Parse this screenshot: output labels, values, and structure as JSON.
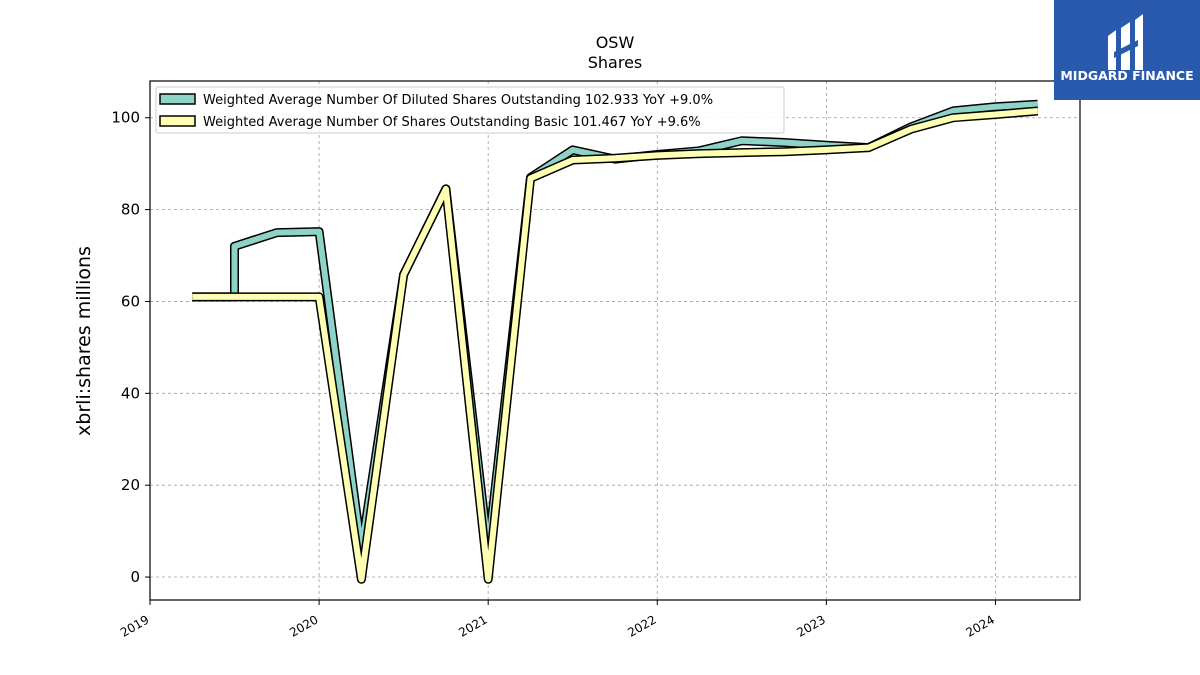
{
  "chart_data": {
    "type": "area",
    "title": "OSW",
    "subtitle": "Shares",
    "ylabel": "xbrli:shares millions",
    "xlabel": "",
    "ylim": [
      -5,
      108
    ],
    "xlim": [
      2019.0,
      2024.5
    ],
    "y_ticks": [
      0,
      20,
      40,
      60,
      80,
      100
    ],
    "x_ticks": [
      2019,
      2020,
      2021,
      2022,
      2023,
      2024
    ],
    "x_tick_labels": [
      "2019",
      "2020",
      "2021",
      "2022",
      "2023",
      "2024"
    ],
    "grid": true,
    "legend_position": "top-left",
    "series": [
      {
        "name": "Weighted Average Number Of Diluted Shares Outstanding",
        "legend_label": "Weighted Average Number Of Diluted Shares Outstanding  102.933 YoY +9.0%",
        "color": "#8dd3c7",
        "x": [
          2019.25,
          2019.5,
          2019.5,
          2019.75,
          2020.0,
          2020.25,
          2020.5,
          2020.75,
          2021.0,
          2021.25,
          2021.5,
          2021.75,
          2022.0,
          2022.25,
          2022.5,
          2022.75,
          2023.0,
          2023.25,
          2023.5,
          2023.75,
          2024.0,
          2024.25
        ],
        "values": [
          61.0,
          61.0,
          72.0,
          75.0,
          75.2,
          6.0,
          65.8,
          84.5,
          6.0,
          87.0,
          93.0,
          91.0,
          92.0,
          92.8,
          95.0,
          94.6,
          94.0,
          93.5,
          98.0,
          101.5,
          102.4,
          102.933
        ]
      },
      {
        "name": "Weighted Average Number Of Shares Outstanding Basic",
        "legend_label": "Weighted Average Number Of Shares Outstanding Basic  101.467 YoY +9.6%",
        "color": "#ffffb3",
        "x": [
          2019.25,
          2019.5,
          2019.75,
          2020.0,
          2020.25,
          2020.5,
          2020.75,
          2021.0,
          2021.25,
          2021.5,
          2021.75,
          2022.0,
          2022.25,
          2022.5,
          2022.75,
          2023.0,
          2023.25,
          2023.5,
          2023.75,
          2024.0,
          2024.25
        ],
        "values": [
          61.0,
          61.0,
          61.0,
          61.0,
          -0.5,
          65.8,
          84.5,
          -0.5,
          86.8,
          90.8,
          91.2,
          91.8,
          92.2,
          92.4,
          92.6,
          93.0,
          93.5,
          97.5,
          100.0,
          100.7,
          101.467
        ]
      }
    ]
  },
  "logo": {
    "text": "MIDGARD FINANCE",
    "bg_color": "#2a5aad"
  }
}
